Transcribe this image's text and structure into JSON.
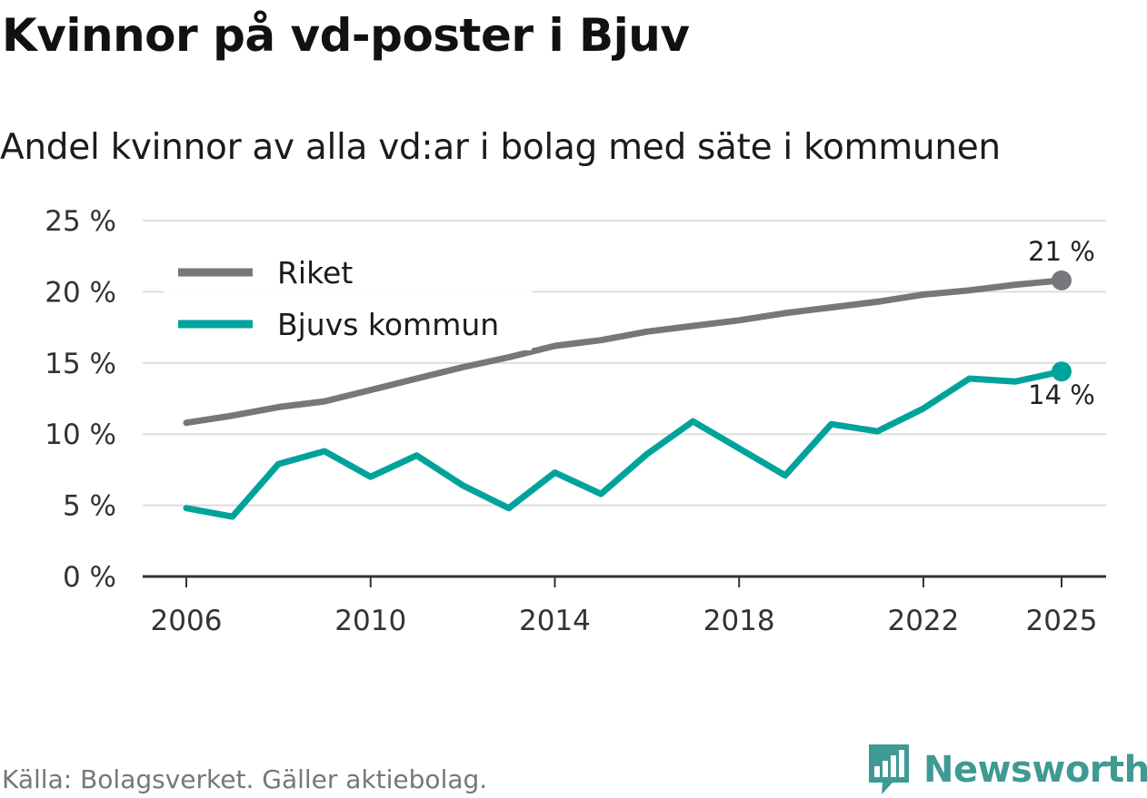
{
  "title": "Kvinnor på vd-poster i Bjuv",
  "subtitle": "Andel kvinnor av alla vd:ar i bolag med säte i kommunen",
  "source": "Källa: Bolagsverket. Gäller aktiebolag.",
  "brand": "Newsworthy",
  "colors": {
    "riket": "#77767b",
    "kommun": "#00a39b",
    "grid": "#dedede",
    "axis": "#333333"
  },
  "chart_data": {
    "type": "line",
    "title": "Kvinnor på vd-poster i Bjuv",
    "xlabel": "",
    "ylabel": "",
    "ylim": [
      0,
      25
    ],
    "xlim": [
      2006,
      2025
    ],
    "x_ticks": [
      2006,
      2010,
      2014,
      2018,
      2022,
      2025
    ],
    "x_tick_labels": [
      "2006",
      "2010",
      "2014",
      "2018",
      "2022",
      "2025"
    ],
    "y_ticks": [
      0,
      5,
      10,
      15,
      20,
      25
    ],
    "y_tick_labels": [
      "0 %",
      "5 %",
      "10 %",
      "15 %",
      "20 %",
      "25 %"
    ],
    "legend_position": "top-left",
    "x": [
      2006,
      2007,
      2008,
      2009,
      2010,
      2011,
      2012,
      2013,
      2014,
      2015,
      2016,
      2017,
      2018,
      2019,
      2020,
      2021,
      2022,
      2023,
      2024,
      2025
    ],
    "series": [
      {
        "name": "Riket",
        "color": "#77767b",
        "values": [
          10.8,
          11.3,
          11.9,
          12.3,
          13.1,
          13.9,
          14.7,
          15.4,
          16.2,
          16.6,
          17.2,
          17.6,
          18.0,
          18.5,
          18.9,
          19.3,
          19.8,
          20.1,
          20.5,
          20.8
        ],
        "end_label": "21 %"
      },
      {
        "name": "Bjuvs kommun",
        "color": "#00a39b",
        "values": [
          4.8,
          4.2,
          7.9,
          8.8,
          7.0,
          8.5,
          6.4,
          4.8,
          7.3,
          5.8,
          8.6,
          10.9,
          9.0,
          7.1,
          10.7,
          10.2,
          11.8,
          13.9,
          13.7,
          14.4
        ],
        "end_label": "14 %"
      }
    ]
  }
}
